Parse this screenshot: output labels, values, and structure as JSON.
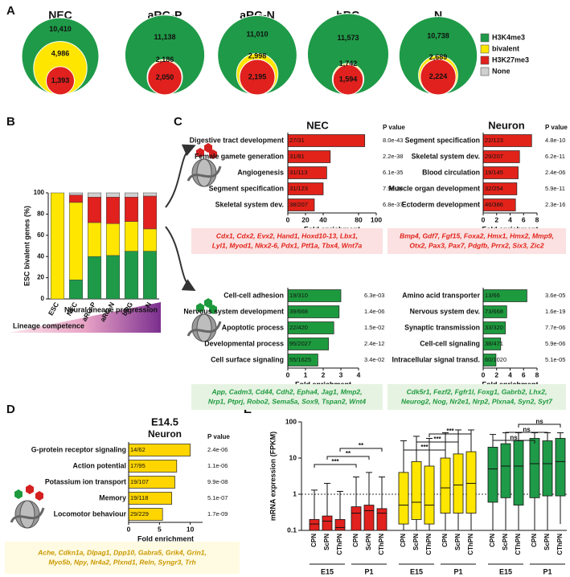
{
  "chart_data": [
    {
      "panel": "A",
      "type": "nested-circles",
      "categories": [
        "NEC",
        "aRG-P",
        "aRG-N",
        "bRG",
        "N"
      ],
      "series": [
        {
          "name": "H3K4me3",
          "color": "#1f9a48",
          "values": [
            10410,
            11138,
            11010,
            11573,
            10738
          ],
          "value_labels": [
            "10,410",
            "11,138",
            "11,010",
            "11,573",
            "10,738"
          ]
        },
        {
          "name": "bivalent",
          "color": "#ffe600",
          "values": [
            4986,
            2186,
            2998,
            1742,
            2689
          ],
          "value_labels": [
            "4,986",
            "2,186",
            "2,998",
            "1,742",
            "2,689"
          ]
        },
        {
          "name": "H3K27me3",
          "color": "#e0211e",
          "values": [
            1393,
            2050,
            2195,
            1594,
            2224
          ],
          "value_labels": [
            "1,393",
            "2,050",
            "2,195",
            "1,594",
            "2,224"
          ]
        },
        {
          "name": "None",
          "color": "#d0d0d0",
          "values": [
            null,
            null,
            null,
            null,
            null
          ]
        }
      ]
    },
    {
      "panel": "B",
      "type": "stacked-bar",
      "categories": [
        "ESC",
        "NEC",
        "aRG-P",
        "aRG-N",
        "bRG",
        "N"
      ],
      "ylabel": "ESC bivalent genes (%)",
      "ylim": [
        0,
        100
      ],
      "yticks": [
        0,
        20,
        40,
        60,
        80,
        100
      ],
      "series": [
        {
          "color": "#1f9a48",
          "values": [
            0,
            18,
            40,
            41,
            45,
            45
          ]
        },
        {
          "color": "#ffe600",
          "values": [
            100,
            73,
            32,
            30,
            28,
            21
          ]
        },
        {
          "color": "#e0211e",
          "values": [
            0,
            7,
            24,
            25,
            23,
            31
          ]
        },
        {
          "color": "#d0d0d0",
          "values": [
            0,
            2,
            4,
            4,
            4,
            3
          ]
        }
      ],
      "annotations": [
        "Neural lineage progression",
        "Lineage competence"
      ]
    },
    {
      "panel": "C",
      "type": "hbar",
      "title": "NEC",
      "pvalue_header": "P value",
      "categories": [
        "Digestive tract development",
        "Female gamete generation",
        "Angiogenesis",
        "Segment specification",
        "Skeletal system dev."
      ],
      "values": [
        87,
        48,
        44,
        40,
        30
      ],
      "counts": [
        "27/31",
        "31/81",
        "31/113",
        "31/123",
        "38/207"
      ],
      "pvalues": [
        "8.0e-43",
        "2.2e-38",
        "6.1e-35",
        "7.9e-34",
        "6.8e-37"
      ],
      "color": "#e2231a",
      "xlabel": "Fold enrichment",
      "xlim": [
        0,
        100
      ],
      "xticks": [
        0,
        20,
        40,
        80,
        100
      ],
      "genes": [
        "Cdx1, Cdx2, Evx2, Hand1, Hoxd10-13, Lbx1,",
        "Lyl1, Myod1, Nkx2-6, Pdx1, Ptf1a, Tbx4, Wnt7a"
      ]
    },
    {
      "type": "hbar",
      "title": "Neuron",
      "pvalue_header": "P value",
      "categories": [
        "Segment specification",
        "Skeletal system dev.",
        "Blood circulation",
        "Muscle organ development",
        "Ectoderm development"
      ],
      "values": [
        7.2,
        5.4,
        5.2,
        5.0,
        4.8
      ],
      "counts": [
        "22/123",
        "29/207",
        "19/145",
        "32/254",
        "46/386"
      ],
      "pvalues": [
        "4.8e-10",
        "6.2e-11",
        "2.4e-06",
        "5.9e-11",
        "2.3e-16"
      ],
      "color": "#e2231a",
      "xlabel": "Fold enrichment",
      "xlim": [
        0,
        8
      ],
      "xticks": [
        0,
        2,
        4,
        6,
        8
      ],
      "genes": [
        "Bmp4, Gdf7, Fgf15, Foxa2, Hmx1, Hmx2, Mmp9,",
        "Otx2, Pax3, Pax7, Pdgfb, Prrx2, Six3, Zic2"
      ]
    },
    {
      "type": "hbar",
      "categories": [
        "Cell-cell adhesion",
        "Nervous system development",
        "Apoptotic process",
        "Developmental process",
        "Cell surface signaling"
      ],
      "values": [
        3.0,
        2.9,
        2.6,
        2.3,
        1.7
      ],
      "counts": [
        "19/310",
        "39/668",
        "22/420",
        "95/2027",
        "55/1625"
      ],
      "pvalues": [
        "6.3e-03",
        "1.4e-06",
        "1.5e-02",
        "2.4e-12",
        "3.4e-02"
      ],
      "color": "#1e9a3e",
      "xlabel": "Fold enrichment",
      "xlim": [
        0,
        4
      ],
      "xticks": [
        0,
        1,
        2,
        3,
        4
      ],
      "genes": [
        "App, Cadm3, Cd44, Cdh2, Epha4, Jag1, Mmp2,",
        "Nrp1, Ptprj, Robo2, Sema5a, Sox9, Tspan2, Wnt4"
      ]
    },
    {
      "type": "hbar",
      "categories": [
        "Amino acid transporter",
        "Nervous system dev.",
        "Synaptic transmission",
        "Cell-cell signaling",
        "Intracellular signal transd."
      ],
      "values": [
        6.5,
        3.5,
        3.3,
        2.6,
        1.9
      ],
      "counts": [
        "13/66",
        "73/668",
        "33/320",
        "38/471",
        "60/1020"
      ],
      "pvalues": [
        "3.6e-05",
        "1.6e-19",
        "7.7e-06",
        "5.9e-06",
        "5.1e-05"
      ],
      "color": "#1e9a3e",
      "xlabel": "Fold enrichment",
      "xlim": [
        0,
        8
      ],
      "xticks": [
        0,
        2,
        4,
        6,
        8
      ],
      "genes": [
        "Cdk5r1, Fezf2, Fgfr1l, Foxg1, Gabrb2, Lhx2,",
        "Neurog2, Nog, Nr2e1, Nrp2, Plxna4, Syn2, Syt7"
      ]
    },
    {
      "panel": "D",
      "type": "hbar",
      "title": "E14.5",
      "subtitle": "Neuron",
      "pvalue_header": "P value",
      "categories": [
        "G-protein receptor signaling",
        "Action potential",
        "Potassium ion transport",
        "Memory",
        "Locomotor behaviour"
      ],
      "values": [
        10,
        7.8,
        7.5,
        7.0,
        5.5
      ],
      "counts": [
        "14/62",
        "17/95",
        "19/107",
        "19/118",
        "29/229"
      ],
      "pvalues": [
        "2.4e-06",
        "1.1e-06",
        "9.9e-08",
        "5.1e-07",
        "1.7e-09"
      ],
      "color": "#ffd500",
      "xlabel": "Fold enrichment",
      "xlim": [
        0,
        12
      ],
      "xticks": [
        0,
        5,
        10
      ],
      "genes": [
        "Ache, Cdkn1a, Dlpag1, Dpp10, Gabra5, Grik4, Grin1,",
        "Myo5b, Npy, Nr4a2, Plxnd1, Reln, Syngr3, Trh"
      ]
    },
    {
      "panel": "E",
      "type": "box",
      "ylabel": "mRNA expression (FPKM)",
      "log_scale": true,
      "ylim": [
        0.1,
        100
      ],
      "yticks": [
        0.1,
        1,
        10,
        100
      ],
      "reference_line": 1,
      "categories": [
        "CPN",
        "ScPN",
        "CThPN"
      ],
      "periods": [
        "E15",
        "P1"
      ],
      "series": [
        {
          "color": "#e0211e",
          "significance": [
            "***",
            "**",
            "**"
          ],
          "values": [
            [
              0.1,
              0.1,
              0.15,
              0.2,
              1.3
            ],
            [
              0.1,
              0.1,
              0.18,
              0.25,
              2
            ],
            [
              0.1,
              0.1,
              0.12,
              0.2,
              1.2
            ],
            [
              0.1,
              0.1,
              0.3,
              0.45,
              3
            ],
            [
              0.1,
              0.1,
              0.35,
              0.5,
              4
            ],
            [
              0.1,
              0.1,
              0.3,
              0.4,
              3
            ]
          ]
        },
        {
          "color": "#ffe600",
          "significance": [
            "***",
            "***",
            "***"
          ],
          "values": [
            [
              0.1,
              0.15,
              0.5,
              4,
              30
            ],
            [
              0.1,
              0.2,
              0.6,
              8,
              40
            ],
            [
              0.1,
              0.15,
              0.5,
              6,
              35
            ],
            [
              0.1,
              0.3,
              1.5,
              10,
              50
            ],
            [
              0.1,
              0.3,
              1.8,
              13,
              60
            ],
            [
              0.1,
              0.3,
              2,
              15,
              60
            ]
          ]
        },
        {
          "color": "#1f9a48",
          "significance": [
            "ns",
            "ns",
            "ns"
          ],
          "values": [
            [
              0.1,
              0.6,
              5,
              20,
              45
            ],
            [
              0.1,
              0.8,
              6,
              25,
              50
            ],
            [
              0.1,
              0.5,
              6,
              30,
              50
            ],
            [
              0.1,
              0.8,
              7,
              35,
              50
            ],
            [
              0.1,
              0.9,
              7,
              30,
              50
            ],
            [
              0.15,
              0.9,
              8,
              35,
              50
            ]
          ]
        }
      ]
    }
  ]
}
